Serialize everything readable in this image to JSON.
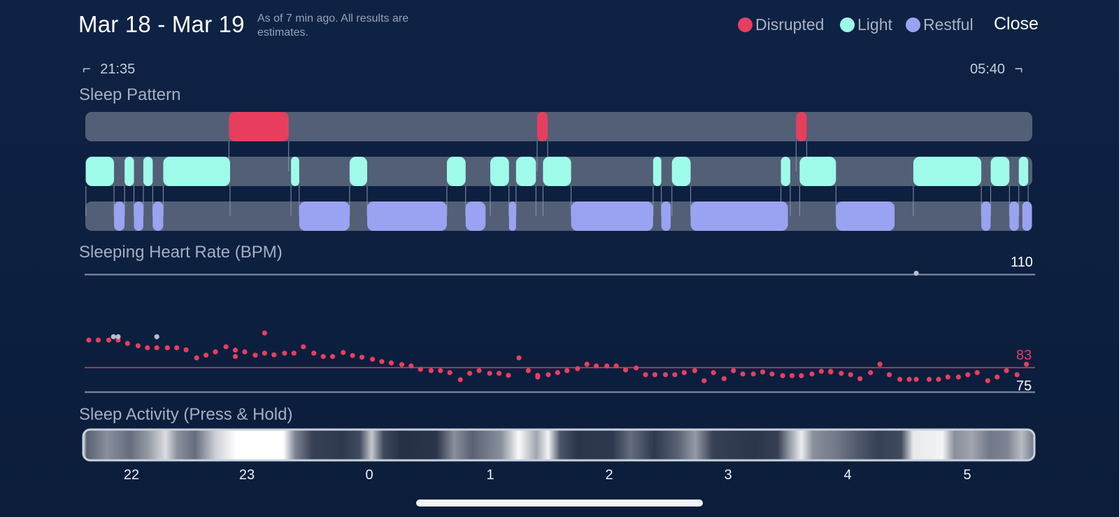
{
  "header": {
    "date_range": "Mar 18 - Mar 19",
    "estimate_note": "As of 7 min ago. All results are estimates.",
    "legend": [
      {
        "label": "Disrupted",
        "color": "#e83e5e"
      },
      {
        "label": "Light",
        "color": "#9efbe9"
      },
      {
        "label": "Restful",
        "color": "#9aa2f2"
      }
    ],
    "close_label": "Close"
  },
  "timeline": {
    "start_time": "21:35",
    "end_time": "05:40"
  },
  "sleep_pattern": {
    "title": "Sleep Pattern"
  },
  "heart_rate": {
    "title": "Sleeping Heart Rate (BPM)",
    "max_label": "110",
    "avg_label": "83",
    "min_label": "75"
  },
  "activity": {
    "title": "Sleep Activity (Press & Hold)"
  },
  "x_axis": {
    "ticks": [
      "22",
      "23",
      "0",
      "1",
      "2",
      "3",
      "4",
      "5"
    ]
  },
  "colors": {
    "disrupted": "#e83e5e",
    "light": "#9efbe9",
    "restful": "#9aa2f2",
    "track": "#535f76",
    "outlier": "#b8bfca"
  },
  "chart_data": [
    {
      "type": "bar",
      "title": "Sleep Pattern",
      "x_unit": "hours after 21:35",
      "xlim": [
        0,
        8.08
      ],
      "series": [
        {
          "name": "Disrupted",
          "segments": [
            [
              1.225,
              1.735
            ],
            [
              3.855,
              3.945
            ],
            [
              6.065,
              6.155
            ]
          ]
        },
        {
          "name": "Light",
          "segments": [
            [
              0.005,
              0.245
            ],
            [
              0.335,
              0.415
            ],
            [
              0.495,
              0.575
            ],
            [
              0.665,
              1.235
            ],
            [
              1.755,
              1.825
            ],
            [
              2.255,
              2.405
            ],
            [
              3.085,
              3.245
            ],
            [
              3.455,
              3.615
            ],
            [
              3.675,
              3.845
            ],
            [
              3.905,
              4.145
            ],
            [
              4.845,
              4.915
            ],
            [
              5.005,
              5.165
            ],
            [
              5.935,
              6.015
            ],
            [
              6.095,
              6.405
            ],
            [
              7.065,
              7.645
            ],
            [
              7.725,
              7.885
            ],
            [
              7.965,
              8.045
            ]
          ]
        },
        {
          "name": "Restful",
          "segments": [
            [
              0.245,
              0.335
            ],
            [
              0.415,
              0.495
            ],
            [
              0.575,
              0.665
            ],
            [
              1.825,
              2.255
            ],
            [
              2.405,
              3.085
            ],
            [
              3.245,
              3.415
            ],
            [
              3.615,
              3.675
            ],
            [
              4.145,
              4.845
            ],
            [
              4.915,
              4.995
            ],
            [
              5.165,
              5.995
            ],
            [
              6.405,
              6.905
            ],
            [
              7.645,
              7.725
            ],
            [
              7.885,
              7.965
            ],
            [
              7.995,
              8.075
            ]
          ]
        }
      ]
    },
    {
      "type": "scatter",
      "title": "Sleeping Heart Rate (BPM)",
      "x_unit": "hours after 21:35",
      "xlim": [
        0,
        8.08
      ],
      "ylim": [
        75,
        110
      ],
      "reference_lines": [
        {
          "label": "110",
          "value": 110
        },
        {
          "label": "83",
          "value": 83
        },
        {
          "label": "75",
          "value": 75
        }
      ],
      "series": [
        {
          "name": "",
          "x": [
            0.03,
            0.11,
            0.2,
            0.28,
            0.36,
            0.45,
            0.53,
            0.61,
            0.7,
            0.78,
            0.86,
            0.95,
            1.03,
            1.11,
            1.2,
            1.28,
            1.53,
            1.61,
            1.7,
            1.78,
            1.86,
            1.95,
            2.03,
            2.11,
            2.2,
            2.28,
            2.36,
            2.45,
            2.53,
            2.61,
            2.7,
            2.78,
            2.86,
            2.95,
            3.03,
            3.11,
            3.2,
            3.28,
            3.36,
            3.45,
            3.53,
            3.61,
            3.7,
            3.78,
            3.86,
            3.95,
            4.03,
            4.11,
            4.2,
            4.28,
            4.36,
            4.45,
            4.53,
            4.61,
            4.7,
            4.78,
            4.86,
            4.95,
            5.03,
            5.11,
            5.2,
            5.28,
            5.36,
            5.45,
            5.53,
            5.61,
            5.7,
            5.78,
            5.86,
            5.95,
            6.03,
            6.11,
            6.2,
            6.28,
            6.36,
            6.45,
            6.53,
            6.61,
            6.7,
            6.78,
            6.86,
            6.95,
            7.03,
            7.09,
            7.2,
            7.28,
            7.36,
            7.45,
            7.53,
            7.61,
            7.7,
            7.78,
            7.86,
            7.95,
            8.03
          ],
          "y": [
            90.5,
            90.5,
            90.5,
            90.5,
            89.5,
            88.8,
            88.2,
            88.2,
            88.2,
            88.2,
            87.6,
            85.2,
            86.0,
            87.0,
            88.5,
            87.5,
            86.6,
            86.1,
            86.6,
            86.6,
            88.5,
            86.6,
            85.6,
            85.6,
            86.8,
            85.9,
            85.4,
            84.8,
            84.1,
            83.7,
            83.2,
            82.8,
            81.8,
            81.4,
            81.4,
            80.8,
            78.7,
            80.6,
            81.4,
            80.6,
            80.6,
            80.0,
            85.2,
            81.4,
            79.5,
            80.2,
            80.8,
            81.4,
            82.0,
            83.3,
            82.8,
            82.8,
            82.8,
            81.6,
            82.2,
            80.2,
            80.2,
            80.2,
            80.2,
            80.8,
            81.4,
            78.4,
            80.8,
            79.0,
            81.4,
            80.4,
            80.4,
            81.0,
            80.4,
            79.9,
            79.9,
            79.9,
            80.4,
            81.2,
            81.2,
            80.6,
            80.2,
            79.0,
            80.8,
            83.3,
            80.2,
            78.8,
            78.8,
            78.8,
            78.8,
            78.8,
            79.5,
            79.5,
            80.2,
            80.8,
            78.4,
            79.5,
            81.4,
            80.2,
            83.3
          ]
        },
        {
          "name": "",
          "x": [
            0.24,
            0.28,
            0.61,
            7.09
          ],
          "y": [
            91.5,
            91.5,
            91.5,
            110.4
          ]
        },
        {
          "name": "",
          "x": [
            1.28,
            1.36,
            1.45,
            1.53,
            3.86,
            6.36
          ],
          "y": [
            85.6,
            87.0,
            86.0,
            92.6,
            80.0,
            81.0
          ]
        }
      ]
    },
    {
      "type": "heatmap",
      "title": "Sleep Activity (Press & Hold)",
      "x_unit": "hours after 21:35",
      "xlim": [
        0,
        8.08
      ],
      "x_ticks": [
        "22",
        "23",
        "0",
        "1",
        "2",
        "3",
        "4",
        "5"
      ],
      "activity_stops": [
        [
          0.0,
          0.85
        ],
        [
          0.03,
          0.3
        ],
        [
          0.2,
          0.5
        ],
        [
          0.4,
          0.35
        ],
        [
          0.55,
          0.55
        ],
        [
          0.7,
          0.85
        ],
        [
          0.8,
          0.5
        ],
        [
          0.95,
          0.35
        ],
        [
          1.13,
          0.8
        ],
        [
          1.3,
          1.0
        ],
        [
          1.7,
          1.0
        ],
        [
          1.8,
          0.45
        ],
        [
          1.95,
          0.15
        ],
        [
          2.2,
          0.12
        ],
        [
          2.35,
          0.2
        ],
        [
          2.45,
          0.75
        ],
        [
          2.55,
          0.2
        ],
        [
          2.7,
          0.08
        ],
        [
          3.0,
          0.1
        ],
        [
          3.15,
          0.5
        ],
        [
          3.3,
          0.3
        ],
        [
          3.55,
          0.5
        ],
        [
          3.7,
          0.98
        ],
        [
          3.85,
          0.6
        ],
        [
          3.95,
          0.95
        ],
        [
          4.05,
          0.25
        ],
        [
          4.2,
          0.1
        ],
        [
          4.5,
          0.12
        ],
        [
          4.65,
          0.35
        ],
        [
          4.85,
          0.12
        ],
        [
          5.05,
          0.3
        ],
        [
          5.2,
          0.55
        ],
        [
          5.35,
          0.15
        ],
        [
          5.7,
          0.1
        ],
        [
          5.9,
          0.15
        ],
        [
          6.0,
          0.55
        ],
        [
          6.1,
          0.92
        ],
        [
          6.2,
          0.5
        ],
        [
          6.4,
          0.4
        ],
        [
          6.6,
          0.25
        ],
        [
          6.75,
          0.15
        ],
        [
          6.95,
          0.2
        ],
        [
          7.05,
          0.9
        ],
        [
          7.3,
          0.95
        ],
        [
          7.4,
          0.5
        ],
        [
          7.55,
          0.6
        ],
        [
          7.7,
          0.4
        ],
        [
          7.85,
          0.45
        ],
        [
          7.97,
          0.7
        ],
        [
          8.08,
          0.4
        ]
      ]
    }
  ]
}
